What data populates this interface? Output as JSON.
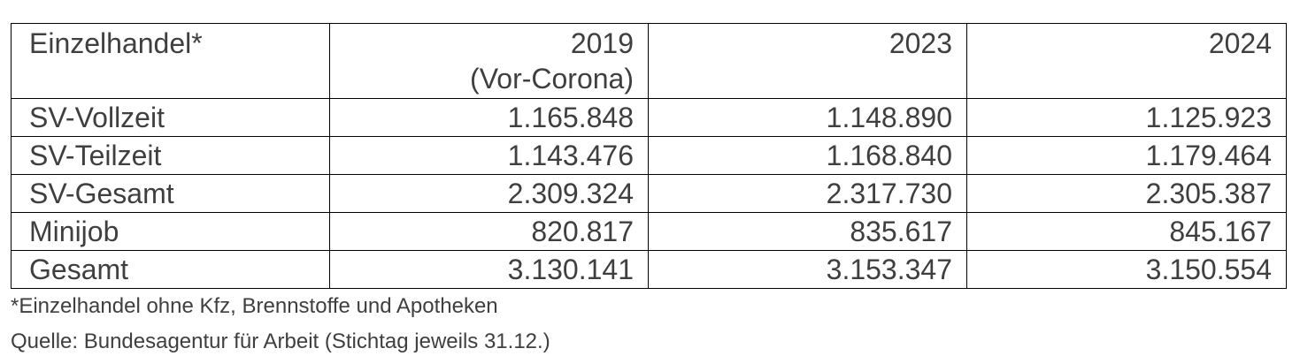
{
  "table": {
    "header": [
      "Einzelhandel*",
      "2019",
      "2023",
      "2024"
    ],
    "header_note": "(Vor-Corona)",
    "rows": [
      [
        "SV-Vollzeit",
        "1.165.848",
        "1.148.890",
        "1.125.923"
      ],
      [
        "SV-Teilzeit",
        "1.143.476",
        "1.168.840",
        "1.179.464"
      ],
      [
        "SV-Gesamt",
        "2.309.324",
        "2.317.730",
        "2.305.387"
      ],
      [
        "Minijob",
        "820.817",
        "835.617",
        "845.167"
      ],
      [
        "Gesamt",
        "3.130.141",
        "3.153.347",
        "3.150.554"
      ]
    ]
  },
  "footnote": "*Einzelhandel ohne Kfz, Brennstoffe und Apotheken",
  "source": "Quelle: Bundesagentur für Arbeit (Stichtag jeweils 31.12.)"
}
